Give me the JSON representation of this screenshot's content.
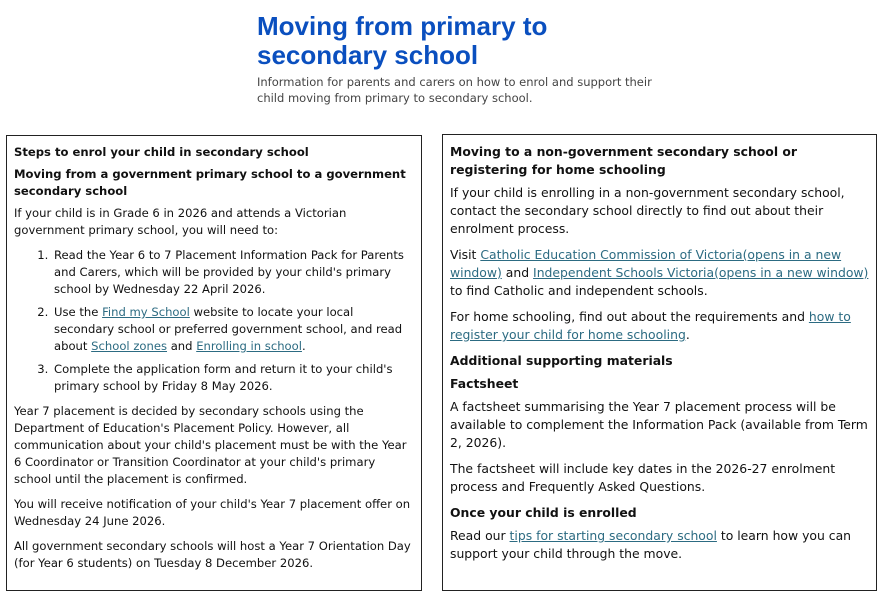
{
  "header": {
    "title": "Moving from primary to secondary school",
    "subtitle": "Information for parents and carers on how to enrol and support their child moving from primary to secondary school."
  },
  "left": {
    "blocks": [
      {
        "type": "heading",
        "text": "Steps to enrol your child in secondary school"
      },
      {
        "type": "heading",
        "text": "Moving from a government primary school to a government secondary school"
      },
      {
        "type": "p",
        "parts": [
          "If your child is in Grade 6 in 2026 and attends a Victorian government primary school, you will need to:"
        ]
      },
      {
        "type": "ol",
        "items": [
          [
            "Read the Year 6 to 7 Placement Information Pack for Parents and Carers, which will be provided by your child's primary school by Wednesday 22 April 2026."
          ],
          [
            "Use the ",
            {
              "link": "Find my School"
            },
            " website to locate your local secondary school or preferred government school, and read about ",
            {
              "link": "School zones"
            },
            " and ",
            {
              "link": "Enrolling in school"
            },
            "."
          ],
          [
            "Complete the application form and return it to your child's primary school by Friday 8 May 2026."
          ]
        ]
      },
      {
        "type": "p",
        "parts": [
          "Year 7 placement is decided by secondary schools using the Department of Education's Placement Policy. However, all communication about your child's placement must be with the Year 6 Coordinator or Transition Coordinator at your child's primary school until the placement is confirmed."
        ]
      },
      {
        "type": "p",
        "parts": [
          "You will receive notification of your child's Year 7 placement offer on Wednesday 24 June 2026."
        ]
      },
      {
        "type": "p",
        "parts": [
          "All government secondary schools will host a Year 7 Orientation Day (for Year 6 students) on Tuesday 8 December 2026."
        ]
      }
    ]
  },
  "right": {
    "blocks": [
      {
        "type": "heading",
        "text": "Moving to a non-government secondary school or registering for home schooling"
      },
      {
        "type": "p",
        "parts": [
          "If your child is enrolling in a non-government secondary school, contact the secondary school directly to find out about their enrolment process."
        ]
      },
      {
        "type": "p",
        "parts": [
          "Visit ",
          {
            "link": "Catholic Education Commission of Victoria(opens in a new window)"
          },
          " and ",
          {
            "link": "Independent Schools Victoria(opens in a new window)"
          },
          " to find Catholic and independent schools."
        ]
      },
      {
        "type": "p",
        "parts": [
          "For home schooling, find out about the requirements and ",
          {
            "link": "how to register your child for home schooling"
          },
          "."
        ]
      },
      {
        "type": "heading",
        "text": "Additional supporting materials"
      },
      {
        "type": "heading",
        "text": "Factsheet"
      },
      {
        "type": "p",
        "parts": [
          "A factsheet summarising the Year 7 placement process will be available to complement the Information Pack (available from Term 2, 2026)."
        ]
      },
      {
        "type": "p",
        "parts": [
          "The factsheet will include key dates in the 2026-27 enrolment process and Frequently Asked Questions."
        ]
      },
      {
        "type": "heading",
        "text": "Once your child is enrolled"
      },
      {
        "type": "p",
        "parts": [
          "Read our ",
          {
            "link": "tips for starting secondary school"
          },
          " to learn how you can support your child through the move."
        ]
      }
    ]
  }
}
